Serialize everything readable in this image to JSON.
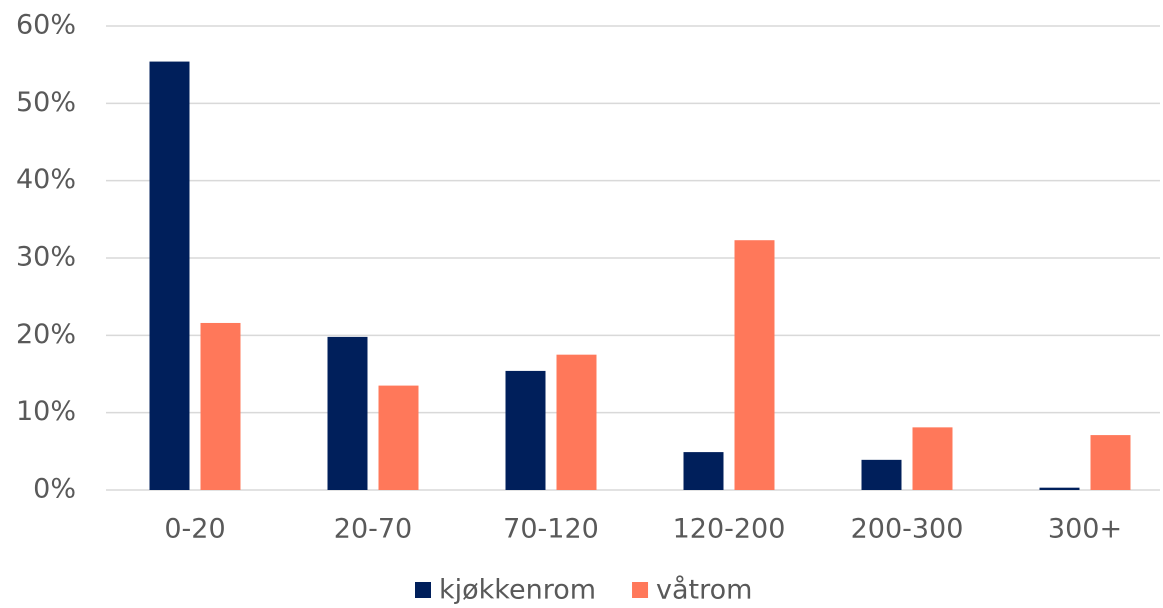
{
  "chart_data": {
    "type": "bar",
    "categories": [
      "0-20",
      "20-70",
      "70-120",
      "120-200",
      "200-300",
      "300+"
    ],
    "series": [
      {
        "name": "kjøkkenrom",
        "color": "#001f5b",
        "values": [
          55.4,
          19.8,
          15.4,
          4.9,
          3.9,
          0.3
        ]
      },
      {
        "name": "våtrom",
        "color": "#ff785a",
        "values": [
          21.6,
          13.5,
          17.5,
          32.3,
          8.1,
          7.1
        ]
      }
    ],
    "ylim": [
      0,
      60
    ],
    "yticks": [
      {
        "value": 0,
        "label": "0%"
      },
      {
        "value": 10,
        "label": "10%"
      },
      {
        "value": 20,
        "label": "20%"
      },
      {
        "value": 30,
        "label": "30%"
      },
      {
        "value": 40,
        "label": "40%"
      },
      {
        "value": 50,
        "label": "50%"
      },
      {
        "value": 60,
        "label": "60%"
      }
    ],
    "grid": true,
    "legend": "bottom"
  }
}
